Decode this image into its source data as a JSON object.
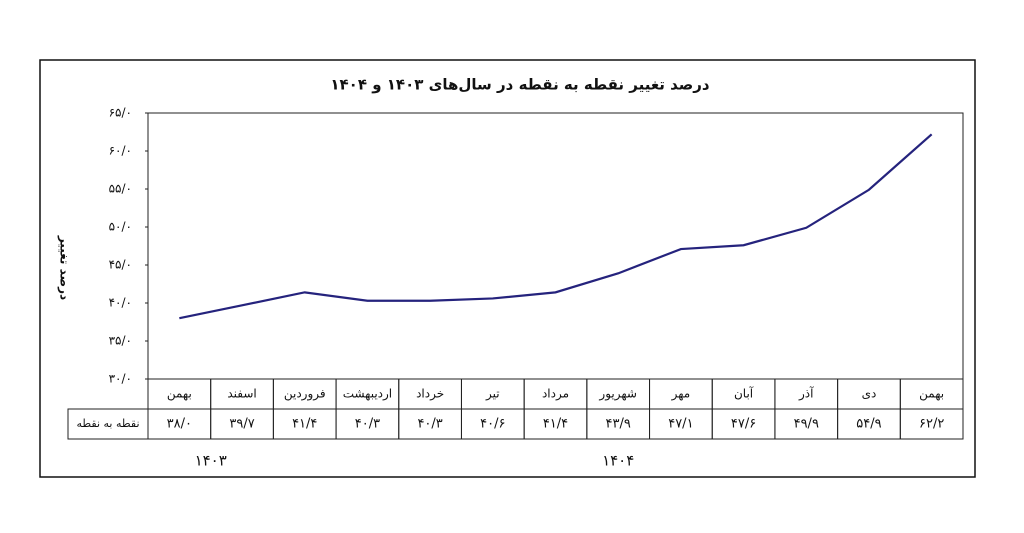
{
  "chart_data": {
    "type": "line",
    "title": "درصد تغییر نقطه به نقطه در سال‌های ۱۴۰۳ و ۱۴۰۴",
    "y_label": "درصد تغییر",
    "categories": [
      "بهمن",
      "اسفند",
      "فروردین",
      "اردیبهشت",
      "خرداد",
      "تیر",
      "مرداد",
      "شهریور",
      "مهر",
      "آبان",
      "آذر",
      "دی",
      "بهمن"
    ],
    "x_groups": [
      "۱۴۰۳",
      "۱۴۰۴"
    ],
    "series": [
      {
        "name": "نقطه به نقطه",
        "color": "#25237d",
        "values": [
          38.0,
          39.7,
          41.4,
          40.3,
          40.3,
          40.6,
          41.4,
          43.9,
          47.1,
          47.6,
          49.9,
          54.9,
          62.2
        ],
        "value_labels": [
          "۳۸/۰",
          "۳۹/۷",
          "۴۱/۴",
          "۴۰/۳",
          "۴۰/۳",
          "۴۰/۶",
          "۴۱/۴",
          "۴۳/۹",
          "۴۷/۱",
          "۴۷/۶",
          "۴۹/۹",
          "۵۴/۹",
          "۶۲/۲"
        ]
      }
    ],
    "ylim": [
      30,
      65
    ],
    "yticks": [
      {
        "value": 30,
        "label": "۳۰/۰"
      },
      {
        "value": 35,
        "label": "۳۵/۰"
      },
      {
        "value": 40,
        "label": "۴۰/۰"
      },
      {
        "value": 45,
        "label": "۴۵/۰"
      },
      {
        "value": 50,
        "label": "۵۰/۰"
      },
      {
        "value": 55,
        "label": "۵۵/۰"
      },
      {
        "value": 60,
        "label": "۶۰/۰"
      },
      {
        "value": 65,
        "label": "۶۵/۰"
      }
    ],
    "grid": false
  }
}
